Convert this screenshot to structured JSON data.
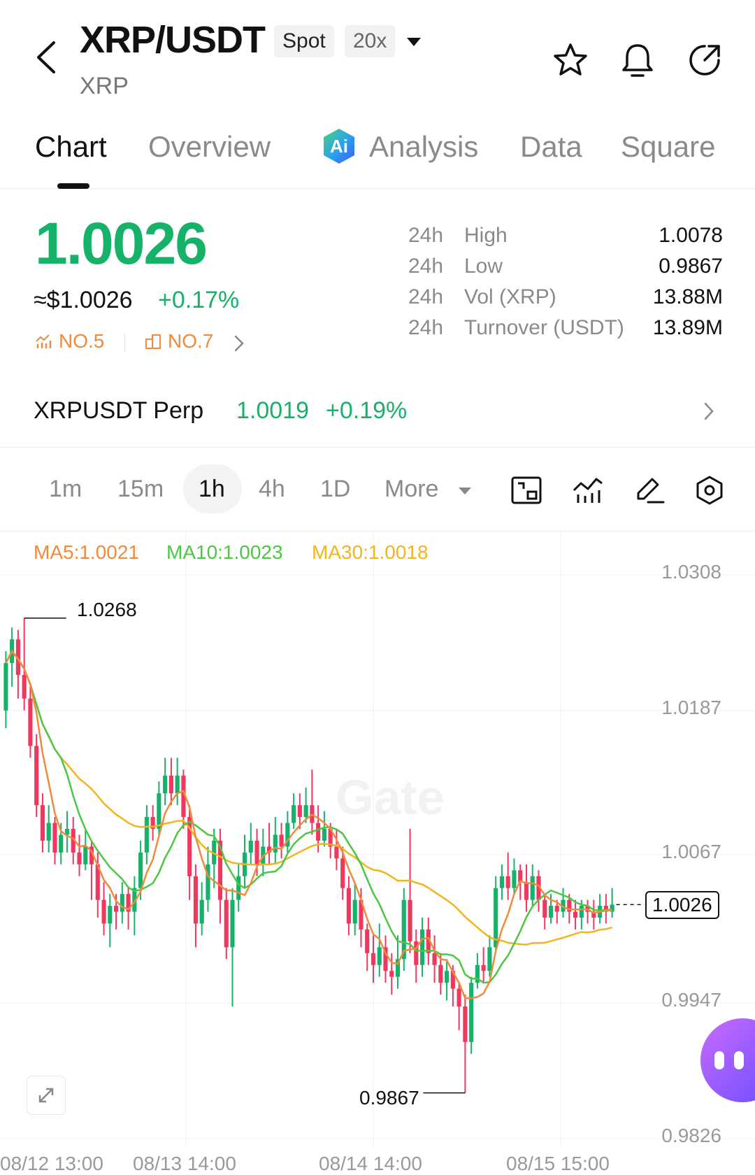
{
  "header": {
    "title": "XRP/USDT",
    "subtitle": "XRP",
    "badge_spot": "Spot",
    "badge_leverage": "20x"
  },
  "tabs": [
    {
      "label": "Chart",
      "active": true
    },
    {
      "label": "Overview"
    },
    {
      "label": "Analysis"
    },
    {
      "label": "Data"
    },
    {
      "label": "Square"
    }
  ],
  "price": {
    "last": "1.0026",
    "usd": "≈$1.0026",
    "change": "+0.17%",
    "color": "#17b26a",
    "rank1": "NO.5",
    "rank2": "NO.7"
  },
  "stats": [
    {
      "period": "24h",
      "label": "High",
      "value": "1.0078"
    },
    {
      "period": "24h",
      "label": "Low",
      "value": "0.9867"
    },
    {
      "period": "24h",
      "label": "Vol (XRP)",
      "value": "13.88M"
    },
    {
      "period": "24h",
      "label": "Turnover (USDT)",
      "value": "13.89M"
    }
  ],
  "perp": {
    "name": "XRPUSDT Perp",
    "price": "1.0019",
    "change": "+0.19%"
  },
  "intervals": [
    {
      "label": "1m"
    },
    {
      "label": "15m"
    },
    {
      "label": "1h",
      "active": true
    },
    {
      "label": "4h"
    },
    {
      "label": "1D"
    },
    {
      "label": "More"
    }
  ],
  "ma_legend": [
    {
      "label": "MA5:1.0021",
      "color": "#f08a3c"
    },
    {
      "label": "MA10:1.0023",
      "color": "#4cc743"
    },
    {
      "label": "MA30:1.0018",
      "color": "#f2b51c"
    }
  ],
  "watermark": "Gate",
  "chart_data": {
    "type": "candlestick",
    "interval": "1h",
    "y_ticks": [
      "1.0308",
      "1.0187",
      "1.0067",
      "0.9947",
      "0.9826"
    ],
    "ylim": [
      0.9826,
      1.0308
    ],
    "x_ticks": [
      "08/12 13:00",
      "08/13 14:00",
      "08/14 14:00",
      "08/15 15:00"
    ],
    "high_label": "1.0268",
    "low_label": "0.9867",
    "current_price": "1.0026",
    "up_color": "#17b26a",
    "down_color": "#f0375d",
    "candles": [
      [
        1.019,
        1.023,
        1.024,
        1.0175
      ],
      [
        1.023,
        1.025,
        1.026,
        1.021
      ],
      [
        1.025,
        1.022,
        1.0258,
        1.02
      ],
      [
        1.022,
        1.02,
        1.0268,
        1.019
      ],
      [
        1.02,
        1.016,
        1.021,
        1.015
      ],
      [
        1.016,
        1.011,
        1.017,
        1.01
      ],
      [
        1.011,
        1.008,
        1.012,
        1.007
      ],
      [
        1.008,
        1.0095,
        1.011,
        1.007
      ],
      [
        1.0095,
        1.007,
        1.01,
        1.006
      ],
      [
        1.007,
        1.0085,
        1.0095,
        1.006
      ],
      [
        1.0085,
        1.009,
        1.0105,
        1.007
      ],
      [
        1.009,
        1.007,
        1.01,
        1.006
      ],
      [
        1.007,
        1.006,
        1.0085,
        1.005
      ],
      [
        1.006,
        1.0075,
        1.009,
        1.0055
      ],
      [
        1.0075,
        1.006,
        1.008,
        1.003
      ],
      [
        1.006,
        1.003,
        1.007,
        1.0015
      ],
      [
        1.003,
        1.001,
        1.0045,
        1.0
      ],
      [
        1.001,
        1.0025,
        1.0035,
        0.999
      ],
      [
        1.0025,
        1.002,
        1.0035,
        1.0005
      ],
      [
        1.002,
        1.0035,
        1.0045,
        1.001
      ],
      [
        1.0035,
        1.002,
        1.004,
        1.0005
      ],
      [
        1.002,
        1.004,
        1.005,
        1.0
      ],
      [
        1.004,
        1.007,
        1.008,
        1.003
      ],
      [
        1.007,
        1.01,
        1.011,
        1.006
      ],
      [
        1.01,
        1.009,
        1.011,
        1.008
      ],
      [
        1.009,
        1.012,
        1.013,
        1.0085
      ],
      [
        1.012,
        1.0135,
        1.015,
        1.011
      ],
      [
        1.0135,
        1.012,
        1.015,
        1.011
      ],
      [
        1.012,
        1.0135,
        1.015,
        1.011
      ],
      [
        1.0135,
        1.01,
        1.014,
        1.009
      ],
      [
        1.01,
        1.005,
        1.011,
        1.003
      ],
      [
        1.005,
        1.001,
        1.006,
        0.999
      ],
      [
        1.001,
        1.003,
        1.0045,
        1.0
      ],
      [
        1.003,
        1.006,
        1.0075,
        1.002
      ],
      [
        1.006,
        1.008,
        1.009,
        1.004
      ],
      [
        1.008,
        1.003,
        1.009,
        1.001
      ],
      [
        1.003,
        0.999,
        1.004,
        0.998
      ],
      [
        0.999,
        1.003,
        1.004,
        0.994
      ],
      [
        1.003,
        1.005,
        1.006,
        1.002
      ],
      [
        1.005,
        1.007,
        1.0085,
        1.004
      ],
      [
        1.007,
        1.008,
        1.0095,
        1.006
      ],
      [
        1.008,
        1.006,
        1.009,
        1.005
      ],
      [
        1.006,
        1.0075,
        1.009,
        1.005
      ],
      [
        1.0075,
        1.007,
        1.0095,
        1.006
      ],
      [
        1.007,
        1.0085,
        1.01,
        1.006
      ],
      [
        1.0085,
        1.0075,
        1.0095,
        1.0065
      ],
      [
        1.0075,
        1.0095,
        1.0105,
        1.007
      ],
      [
        1.0095,
        1.011,
        1.012,
        1.009
      ],
      [
        1.011,
        1.01,
        1.012,
        1.009
      ],
      [
        1.01,
        1.011,
        1.0125,
        1.0095
      ],
      [
        1.011,
        1.0095,
        1.014,
        1.0085
      ],
      [
        1.0095,
        1.008,
        1.011,
        1.007
      ],
      [
        1.008,
        1.009,
        1.0105,
        1.0075
      ],
      [
        1.009,
        1.0075,
        1.0095,
        1.0065
      ],
      [
        1.0075,
        1.0065,
        1.009,
        1.0055
      ],
      [
        1.0065,
        1.004,
        1.0075,
        1.003
      ],
      [
        1.004,
        1.001,
        1.005,
        1.0
      ],
      [
        1.001,
        1.003,
        1.0045,
        1.0
      ],
      [
        1.003,
        1.0005,
        1.004,
        0.999
      ],
      [
        1.0005,
        0.9985,
        1.001,
        0.997
      ],
      [
        0.9985,
        0.9975,
        1.0,
        0.996
      ],
      [
        0.9975,
        0.999,
        1.001,
        0.9965
      ],
      [
        0.999,
        0.997,
        1.0,
        0.996
      ],
      [
        0.997,
        0.9965,
        0.9985,
        0.995
      ],
      [
        0.9965,
        0.998,
        1.0,
        0.9955
      ],
      [
        0.998,
        1.003,
        1.004,
        0.997
      ],
      [
        1.003,
        0.9995,
        1.009,
        0.9985
      ],
      [
        0.9995,
        0.9975,
        1.0005,
        0.996
      ],
      [
        0.9975,
        1.0005,
        1.0015,
        0.9965
      ],
      [
        1.0005,
        0.9985,
        1.0015,
        0.9975
      ],
      [
        0.9985,
        0.9975,
        1.0,
        0.996
      ],
      [
        0.9975,
        0.996,
        0.9985,
        0.995
      ],
      [
        0.996,
        0.997,
        0.998,
        0.9945
      ],
      [
        0.997,
        0.9955,
        0.9975,
        0.994
      ],
      [
        0.9955,
        0.994,
        0.996,
        0.992
      ],
      [
        0.994,
        0.991,
        0.995,
        0.9867
      ],
      [
        0.991,
        0.996,
        0.9965,
        0.99
      ],
      [
        0.996,
        0.9975,
        0.9985,
        0.9955
      ],
      [
        0.9975,
        0.997,
        0.999,
        0.996
      ],
      [
        0.997,
        0.999,
        1.0,
        0.9965
      ],
      [
        0.999,
        1.004,
        1.005,
        0.9985
      ],
      [
        1.004,
        1.005,
        1.006,
        1.003
      ],
      [
        1.005,
        1.004,
        1.007,
        1.003
      ],
      [
        1.004,
        1.0055,
        1.0065,
        1.0035
      ],
      [
        1.0055,
        1.0045,
        1.006,
        1.003
      ],
      [
        1.0045,
        1.003,
        1.006,
        1.002
      ],
      [
        1.003,
        1.005,
        1.006,
        1.0025
      ],
      [
        1.005,
        1.003,
        1.0055,
        1.002
      ],
      [
        1.003,
        1.0015,
        1.0035,
        1.0005
      ],
      [
        1.0015,
        1.0025,
        1.0035,
        1.001
      ],
      [
        1.0025,
        1.002,
        1.003,
        1.001
      ],
      [
        1.002,
        1.003,
        1.004,
        1.0015
      ],
      [
        1.003,
        1.002,
        1.0035,
        1.001
      ],
      [
        1.002,
        1.0015,
        1.003,
        1.0005
      ],
      [
        1.0015,
        1.0025,
        1.003,
        1.0005
      ],
      [
        1.0025,
        1.002,
        1.003,
        1.001
      ],
      [
        1.002,
        1.0015,
        1.003,
        1.0005
      ],
      [
        1.0015,
        1.0025,
        1.0035,
        1.001
      ],
      [
        1.0025,
        1.002,
        1.0035,
        1.001
      ],
      [
        1.002,
        1.0026,
        1.004,
        1.0015
      ]
    ]
  }
}
